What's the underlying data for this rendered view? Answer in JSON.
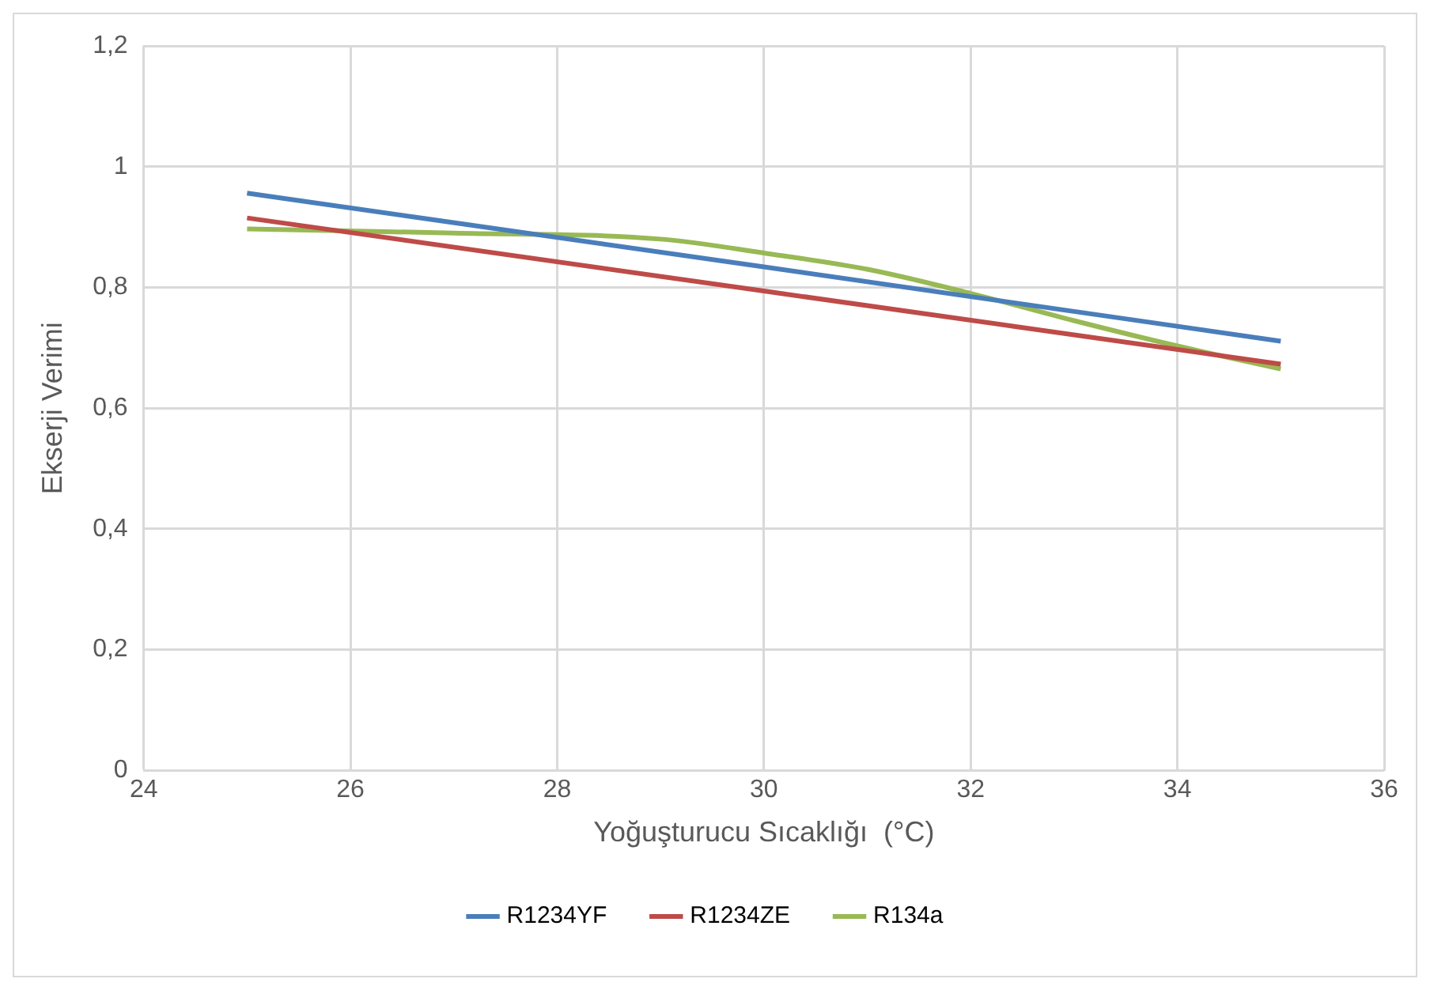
{
  "chart_data": {
    "type": "line",
    "xlabel": "Yoğuşturucu Sıcaklığı  (°C)",
    "ylabel": "Ekserji Verimi",
    "xlim": [
      24,
      36
    ],
    "xticks": [
      24,
      26,
      28,
      30,
      32,
      34,
      36
    ],
    "ylim": [
      0,
      1.2
    ],
    "yticks": [
      0,
      {
        "value": 0.2,
        "label": "0,2"
      },
      {
        "value": 0.4,
        "label": "0,4"
      },
      {
        "value": 0.6,
        "label": "0,6"
      },
      {
        "value": 0.8,
        "label": "0,8"
      },
      1,
      {
        "value": 1.2,
        "label": "1,2"
      }
    ],
    "grid": true,
    "legend": "bottom",
    "marker": "none",
    "line_style": "solid",
    "series": [
      {
        "name": "R1234YF",
        "color": "#4a7ebb",
        "x": [
          25,
          30,
          35
        ],
        "values": [
          0.956,
          0.834,
          0.711
        ]
      },
      {
        "name": "R1234ZE",
        "color": "#be4b48",
        "x": [
          25,
          30,
          35
        ],
        "values": [
          0.915,
          0.794,
          0.673
        ]
      },
      {
        "name": "R134a",
        "color": "#98b954",
        "x": [
          25,
          27,
          29,
          30,
          31,
          32,
          33,
          34,
          35
        ],
        "values": [
          0.897,
          0.89,
          0.88,
          0.857,
          0.83,
          0.79,
          0.745,
          0.703,
          0.665
        ]
      }
    ]
  }
}
